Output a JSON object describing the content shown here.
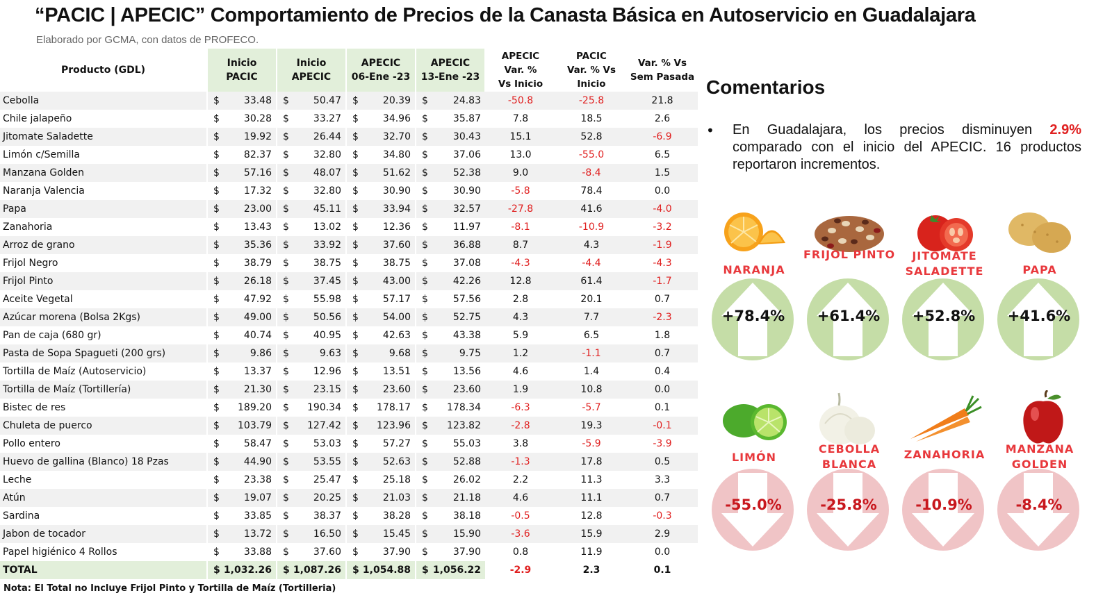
{
  "header": {
    "title": "“PACIC | APECIC” Comportamiento de Precios de la Canasta Básica en Autoservicio en Guadalajara",
    "subtitle": "Elaborado por GCMA, con datos de PROFECO."
  },
  "table": {
    "headers": {
      "product": "Producto (GDL)",
      "inicio_pacic": [
        "Inicio",
        "PACIC"
      ],
      "inicio_apecic": [
        "Inicio",
        "APECIC"
      ],
      "apecic_06": [
        "APECIC",
        "06-Ene -23"
      ],
      "apecic_13": [
        "APECIC",
        "13-Ene -23"
      ],
      "apecic_var": [
        "APECIC",
        "Var. %",
        "Vs  Inicio"
      ],
      "pacic_var": [
        "PACIC",
        "Var. % Vs",
        "Inicio"
      ],
      "sem_var": [
        "Var. % Vs",
        "Sem Pasada"
      ]
    },
    "currency_symbol": "$",
    "rows": [
      {
        "p": "Cebolla",
        "a": "33.48",
        "b": "50.47",
        "c": "20.39",
        "d": "24.83",
        "e": "-50.8",
        "f": "-25.8",
        "g": "21.8"
      },
      {
        "p": "Chile jalapeño",
        "a": "30.28",
        "b": "33.27",
        "c": "34.96",
        "d": "35.87",
        "e": "7.8",
        "f": "18.5",
        "g": "2.6"
      },
      {
        "p": "Jitomate Saladette",
        "a": "19.92",
        "b": "26.44",
        "c": "32.70",
        "d": "30.43",
        "e": "15.1",
        "f": "52.8",
        "g": "-6.9"
      },
      {
        "p": "Limón c/Semilla",
        "a": "82.37",
        "b": "32.80",
        "c": "34.80",
        "d": "37.06",
        "e": "13.0",
        "f": "-55.0",
        "g": "6.5"
      },
      {
        "p": "Manzana Golden",
        "a": "57.16",
        "b": "48.07",
        "c": "51.62",
        "d": "52.38",
        "e": "9.0",
        "f": "-8.4",
        "g": "1.5"
      },
      {
        "p": "Naranja Valencia",
        "a": "17.32",
        "b": "32.80",
        "c": "30.90",
        "d": "30.90",
        "e": "-5.8",
        "f": "78.4",
        "g": "0.0"
      },
      {
        "p": "Papa",
        "a": "23.00",
        "b": "45.11",
        "c": "33.94",
        "d": "32.57",
        "e": "-27.8",
        "f": "41.6",
        "g": "-4.0"
      },
      {
        "p": "Zanahoria",
        "a": "13.43",
        "b": "13.02",
        "c": "12.36",
        "d": "11.97",
        "e": "-8.1",
        "f": "-10.9",
        "g": "-3.2"
      },
      {
        "p": "Arroz de grano",
        "a": "35.36",
        "b": "33.92",
        "c": "37.60",
        "d": "36.88",
        "e": "8.7",
        "f": "4.3",
        "g": "-1.9"
      },
      {
        "p": "Frijol Negro",
        "a": "38.79",
        "b": "38.75",
        "c": "38.75",
        "d": "37.08",
        "e": "-4.3",
        "f": "-4.4",
        "g": "-4.3"
      },
      {
        "p": "Frijol Pinto",
        "a": "26.18",
        "b": "37.45",
        "c": "43.00",
        "d": "42.26",
        "e": "12.8",
        "f": "61.4",
        "g": "-1.7"
      },
      {
        "p": "Aceite Vegetal",
        "a": "47.92",
        "b": "55.98",
        "c": "57.17",
        "d": "57.56",
        "e": "2.8",
        "f": "20.1",
        "g": "0.7"
      },
      {
        "p": "Azúcar morena (Bolsa 2Kgs)",
        "a": "49.00",
        "b": "50.56",
        "c": "54.00",
        "d": "52.75",
        "e": "4.3",
        "f": "7.7",
        "g": "-2.3"
      },
      {
        "p": "Pan de caja (680 gr)",
        "a": "40.74",
        "b": "40.95",
        "c": "42.63",
        "d": "43.38",
        "e": "5.9",
        "f": "6.5",
        "g": "1.8"
      },
      {
        "p": "Pasta de Sopa Spagueti (200 grs)",
        "a": "9.86",
        "b": "9.63",
        "c": "9.68",
        "d": "9.75",
        "e": "1.2",
        "f": "-1.1",
        "g": "0.7"
      },
      {
        "p": "Tortilla de Maíz (Autoservicio)",
        "a": "13.37",
        "b": "12.96",
        "c": "13.51",
        "d": "13.56",
        "e": "4.6",
        "f": "1.4",
        "g": "0.4"
      },
      {
        "p": "Tortilla de Maíz (Tortillería)",
        "a": "21.30",
        "b": "23.15",
        "c": "23.60",
        "d": "23.60",
        "e": "1.9",
        "f": "10.8",
        "g": "0.0"
      },
      {
        "p": "Bistec de res",
        "a": "189.20",
        "b": "190.34",
        "c": "178.17",
        "d": "178.34",
        "e": "-6.3",
        "f": "-5.7",
        "g": "0.1"
      },
      {
        "p": "Chuleta de puerco",
        "a": "103.79",
        "b": "127.42",
        "c": "123.96",
        "d": "123.82",
        "e": "-2.8",
        "f": "19.3",
        "g": "-0.1"
      },
      {
        "p": "Pollo entero",
        "a": "58.47",
        "b": "53.03",
        "c": "57.27",
        "d": "55.03",
        "e": "3.8",
        "f": "-5.9",
        "g": "-3.9"
      },
      {
        "p": "Huevo de gallina (Blanco) 18 Pzas",
        "a": "44.90",
        "b": "53.55",
        "c": "52.63",
        "d": "52.88",
        "e": "-1.3",
        "f": "17.8",
        "g": "0.5"
      },
      {
        "p": "Leche",
        "a": "23.38",
        "b": "25.47",
        "c": "25.18",
        "d": "26.02",
        "e": "2.2",
        "f": "11.3",
        "g": "3.3"
      },
      {
        "p": "Atún",
        "a": "19.07",
        "b": "20.25",
        "c": "21.03",
        "d": "21.18",
        "e": "4.6",
        "f": "11.1",
        "g": "0.7"
      },
      {
        "p": "Sardina",
        "a": "33.85",
        "b": "38.37",
        "c": "38.28",
        "d": "38.18",
        "e": "-0.5",
        "f": "12.8",
        "g": "-0.3"
      },
      {
        "p": "Jabon de tocador",
        "a": "13.72",
        "b": "16.50",
        "c": "15.45",
        "d": "15.90",
        "e": "-3.6",
        "f": "15.9",
        "g": "2.9"
      },
      {
        "p": "Papel higiénico 4 Rollos",
        "a": "33.88",
        "b": "37.60",
        "c": "37.90",
        "d": "37.90",
        "e": "0.8",
        "f": "11.9",
        "g": "0.0"
      }
    ],
    "total": {
      "p": "TOTAL",
      "a": "1,032.26",
      "b": "1,087.26",
      "c": "1,054.88",
      "d": "1,056.22",
      "e": "-2.9",
      "f": "2.3",
      "g": "0.1"
    },
    "note": "Nota: El Total no Incluye Frijol Pinto y Tortilla de Maíz (Tortilleria)"
  },
  "comments": {
    "title": "Comentarios",
    "bullet_pre": "En Guadalajara, los precios disminuyen ",
    "bullet_highlight": "2.9%",
    "bullet_post": " comparado con el inicio del APECIC. 16 productos reportaron incrementos.",
    "colors": {
      "up_circle": "#c5dda7",
      "down_circle": "#f0c4c6",
      "label": "#e8383c",
      "negative": "#e02020"
    }
  },
  "highlights": {
    "increases": [
      {
        "label": "NARANJA",
        "value": "+78.4%",
        "icon": "orange-icon"
      },
      {
        "label": "FRIJOL PINTO",
        "value": "+61.4%",
        "icon": "beans-icon"
      },
      {
        "label": "JITOMATE SALADETTE",
        "value": "+52.8%",
        "icon": "tomato-icon"
      },
      {
        "label": "PAPA",
        "value": "+41.6%",
        "icon": "potato-icon"
      }
    ],
    "decreases": [
      {
        "label": "LIMÓN",
        "value": "-55.0%",
        "icon": "lime-icon"
      },
      {
        "label": "CEBOLLA BLANCA",
        "value": "-25.8%",
        "icon": "onion-icon"
      },
      {
        "label": "ZANAHORIA",
        "value": "-10.9%",
        "icon": "carrot-icon"
      },
      {
        "label": "MANZANA GOLDEN",
        "value": "-8.4%",
        "icon": "apple-icon"
      }
    ]
  }
}
